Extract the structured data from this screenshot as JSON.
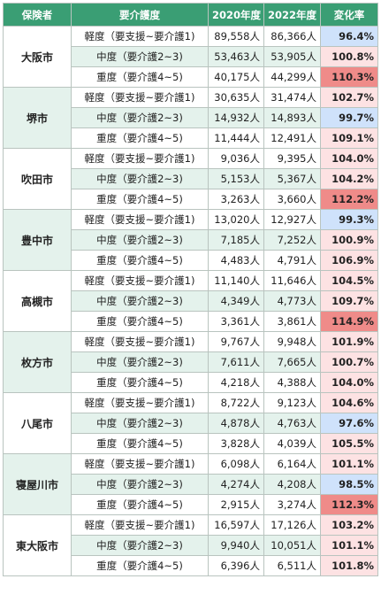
{
  "colors": {
    "header_bg": "#3a9e74",
    "row_shade": "#e4f2ec",
    "rate_increase": "#fde2e3",
    "rate_decrease": "#cfe2fb",
    "rate_high": "#ef8b89"
  },
  "table": {
    "headers": {
      "insurer": "保険者",
      "level": "要介護度",
      "y2020": "2020年度",
      "y2022": "2022年度",
      "rate": "変化率"
    },
    "cities": [
      {
        "name": "大阪市",
        "rows": [
          {
            "level": "軽度（要支援~要介護1)",
            "y2020": "89,558人",
            "y2022": "86,366人",
            "rate": "96.4%",
            "highlight": "down"
          },
          {
            "level": "中度（要介護2~3)",
            "y2020": "53,463人",
            "y2022": "53,905人",
            "rate": "100.8%",
            "highlight": "up"
          },
          {
            "level": "重度（要介護4~5)",
            "y2020": "40,175人",
            "y2022": "44,299人",
            "rate": "110.3%",
            "highlight": "high"
          }
        ]
      },
      {
        "name": "堺市",
        "rows": [
          {
            "level": "軽度（要支援~要介護1)",
            "y2020": "30,635人",
            "y2022": "31,474人",
            "rate": "102.7%",
            "highlight": "up"
          },
          {
            "level": "中度（要介護2~3)",
            "y2020": "14,932人",
            "y2022": "14,893人",
            "rate": "99.7%",
            "highlight": "down"
          },
          {
            "level": "重度（要介護4~5)",
            "y2020": "11,444人",
            "y2022": "12,491人",
            "rate": "109.1%",
            "highlight": "up"
          }
        ]
      },
      {
        "name": "吹田市",
        "rows": [
          {
            "level": "軽度（要支援~要介護1)",
            "y2020": "9,036人",
            "y2022": "9,395人",
            "rate": "104.0%",
            "highlight": "up"
          },
          {
            "level": "中度（要介護2~3)",
            "y2020": "5,153人",
            "y2022": "5,367人",
            "rate": "104.2%",
            "highlight": "up"
          },
          {
            "level": "重度（要介護4~5)",
            "y2020": "3,263人",
            "y2022": "3,660人",
            "rate": "112.2%",
            "highlight": "high"
          }
        ]
      },
      {
        "name": "豊中市",
        "rows": [
          {
            "level": "軽度（要支援~要介護1)",
            "y2020": "13,020人",
            "y2022": "12,927人",
            "rate": "99.3%",
            "highlight": "down"
          },
          {
            "level": "中度（要介護2~3)",
            "y2020": "7,185人",
            "y2022": "7,252人",
            "rate": "100.9%",
            "highlight": "up"
          },
          {
            "level": "重度（要介護4~5)",
            "y2020": "4,483人",
            "y2022": "4,791人",
            "rate": "106.9%",
            "highlight": "up"
          }
        ]
      },
      {
        "name": "高槻市",
        "rows": [
          {
            "level": "軽度（要支援~要介護1)",
            "y2020": "11,140人",
            "y2022": "11,646人",
            "rate": "104.5%",
            "highlight": "up"
          },
          {
            "level": "中度（要介護2~3)",
            "y2020": "4,349人",
            "y2022": "4,773人",
            "rate": "109.7%",
            "highlight": "up"
          },
          {
            "level": "重度（要介護4~5)",
            "y2020": "3,361人",
            "y2022": "3,861人",
            "rate": "114.9%",
            "highlight": "high"
          }
        ]
      },
      {
        "name": "枚方市",
        "rows": [
          {
            "level": "軽度（要支援~要介護1)",
            "y2020": "9,767人",
            "y2022": "9,948人",
            "rate": "101.9%",
            "highlight": "up"
          },
          {
            "level": "中度（要介護2~3)",
            "y2020": "7,611人",
            "y2022": "7,665人",
            "rate": "100.7%",
            "highlight": "up"
          },
          {
            "level": "重度（要介護4~5)",
            "y2020": "4,218人",
            "y2022": "4,388人",
            "rate": "104.0%",
            "highlight": "up"
          }
        ]
      },
      {
        "name": "八尾市",
        "rows": [
          {
            "level": "軽度（要支援~要介護1)",
            "y2020": "8,722人",
            "y2022": "9,123人",
            "rate": "104.6%",
            "highlight": "up"
          },
          {
            "level": "中度（要介護2~3)",
            "y2020": "4,878人",
            "y2022": "4,763人",
            "rate": "97.6%",
            "highlight": "down"
          },
          {
            "level": "重度（要介護4~5)",
            "y2020": "3,828人",
            "y2022": "4,039人",
            "rate": "105.5%",
            "highlight": "up"
          }
        ]
      },
      {
        "name": "寝屋川市",
        "rows": [
          {
            "level": "軽度（要支援~要介護1)",
            "y2020": "6,098人",
            "y2022": "6,164人",
            "rate": "101.1%",
            "highlight": "up"
          },
          {
            "level": "中度（要介護2~3)",
            "y2020": "4,274人",
            "y2022": "4,208人",
            "rate": "98.5%",
            "highlight": "down"
          },
          {
            "level": "重度（要介護4~5)",
            "y2020": "2,915人",
            "y2022": "3,274人",
            "rate": "112.3%",
            "highlight": "high"
          }
        ]
      },
      {
        "name": "東大阪市",
        "rows": [
          {
            "level": "軽度（要支援~要介護1)",
            "y2020": "16,597人",
            "y2022": "17,126人",
            "rate": "103.2%",
            "highlight": "up"
          },
          {
            "level": "中度（要介護2~3)",
            "y2020": "9,940人",
            "y2022": "10,051人",
            "rate": "101.1%",
            "highlight": "up"
          },
          {
            "level": "重度（要介護4~5)",
            "y2020": "6,396人",
            "y2022": "6,511人",
            "rate": "101.8%",
            "highlight": "up"
          }
        ]
      }
    ]
  }
}
